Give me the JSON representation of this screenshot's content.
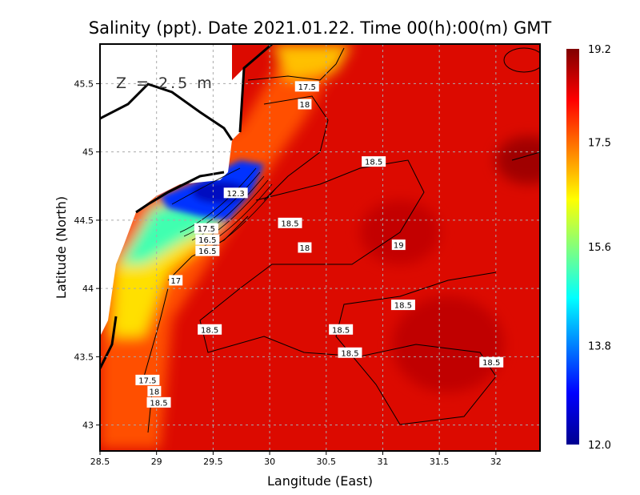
{
  "chart_data": {
    "type": "heatmap",
    "title": "Salinity (ppt). Date 2021.01.22. Time 00(h):00(m) GMT",
    "depth_label": "Z = 2.5 m",
    "xlabel": "Langitude (East)",
    "ylabel": "Latitude (North)",
    "xlim": [
      28.5,
      32.39
    ],
    "ylim": [
      42.81,
      45.79
    ],
    "xticks": [
      "28.5",
      "29",
      "29.5",
      "30",
      "30.5",
      "31",
      "31.5",
      "32"
    ],
    "xtick_values": [
      28.5,
      29,
      29.5,
      30,
      30.5,
      31,
      31.5,
      32
    ],
    "yticks": [
      "43",
      "43.5",
      "44",
      "44.5",
      "45",
      "45.5"
    ],
    "ytick_values": [
      43,
      43.5,
      44,
      44.5,
      45,
      45.5
    ],
    "grid": true,
    "colorbar": {
      "min": 12.0,
      "max": 19.2,
      "tick_labels": [
        "19.2",
        "17.5",
        "15.6",
        "13.8",
        "12.0"
      ],
      "tick_values": [
        19.2,
        17.5,
        15.6,
        13.8,
        12.0
      ],
      "colormap": "jet"
    },
    "contour_labels": [
      {
        "text": "17.5",
        "lon": 30.33,
        "lat": 45.48
      },
      {
        "text": "18",
        "lon": 30.31,
        "lat": 45.35
      },
      {
        "text": "18.5",
        "lon": 30.92,
        "lat": 44.93
      },
      {
        "text": "12.3",
        "lon": 29.7,
        "lat": 44.7
      },
      {
        "text": "17.5",
        "lon": 29.44,
        "lat": 44.44
      },
      {
        "text": "16.5",
        "lon": 29.45,
        "lat": 44.36
      },
      {
        "text": "16.5",
        "lon": 29.45,
        "lat": 44.32
      },
      {
        "text": "18.5",
        "lon": 30.18,
        "lat": 44.48
      },
      {
        "text": "18",
        "lon": 30.31,
        "lat": 44.3
      },
      {
        "text": "19",
        "lon": 31.14,
        "lat": 44.32
      },
      {
        "text": "17",
        "lon": 29.17,
        "lat": 44.06
      },
      {
        "text": "18.5",
        "lon": 31.18,
        "lat": 43.88
      },
      {
        "text": "18.5",
        "lon": 29.47,
        "lat": 43.7
      },
      {
        "text": "18.5",
        "lon": 30.63,
        "lat": 43.7
      },
      {
        "text": "18.5",
        "lon": 30.71,
        "lat": 43.53
      },
      {
        "text": "18.5",
        "lon": 31.96,
        "lat": 43.46
      },
      {
        "text": "17.5",
        "lon": 28.92,
        "lat": 43.33
      },
      {
        "text": "18",
        "lon": 28.98,
        "lat": 43.28
      },
      {
        "text": "18.5",
        "lon": 29.02,
        "lat": 43.23
      }
    ]
  }
}
